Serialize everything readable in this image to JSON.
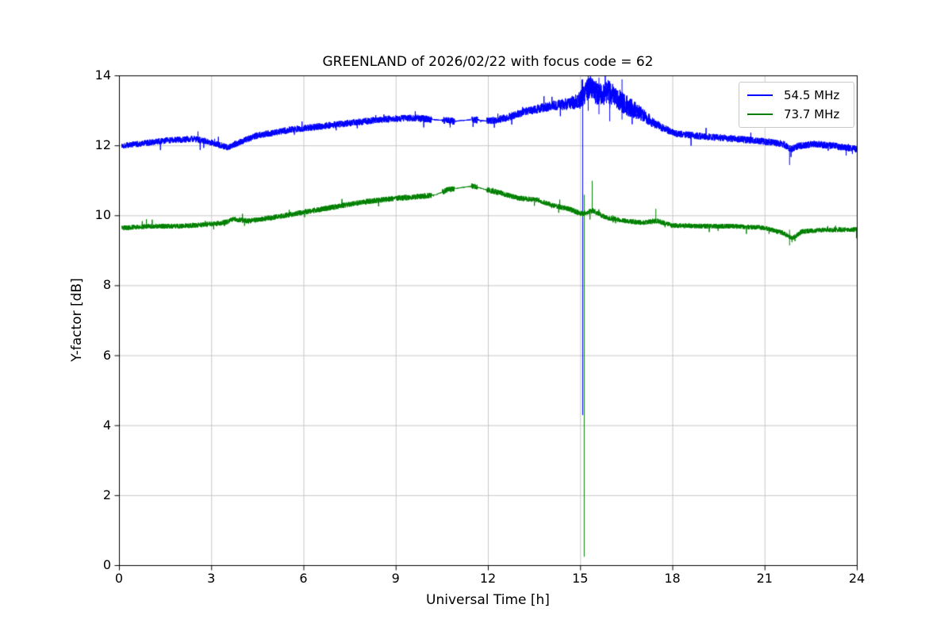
{
  "figure": {
    "background": "#ffffff"
  },
  "chart_data": {
    "type": "line",
    "title": "GREENLAND of 2026/02/22 with focus code = 62",
    "xlabel": "Universal Time [h]",
    "ylabel": "Y-factor [dB]",
    "xlim": [
      0,
      24
    ],
    "ylim": [
      0,
      14
    ],
    "xticks": [
      0,
      3,
      6,
      9,
      12,
      15,
      18,
      21,
      24
    ],
    "yticks": [
      0,
      2,
      4,
      6,
      8,
      10,
      12,
      14
    ],
    "grid": true,
    "grid_color": "#c8c8c8",
    "axis_color": "#000000",
    "legend_position": "upper right",
    "gaps": [
      [
        10.15,
        10.5
      ],
      [
        10.9,
        11.45
      ],
      [
        11.65,
        11.95
      ]
    ],
    "series": [
      {
        "name": "54.5 MHz",
        "color": "#0000ff",
        "seed": 1337,
        "x_range": [
          0.08,
          24.0
        ],
        "trend": [
          [
            0.08,
            12.0
          ],
          [
            0.6,
            12.05
          ],
          [
            1.5,
            12.15
          ],
          [
            2.4,
            12.2
          ],
          [
            3.0,
            12.1
          ],
          [
            3.5,
            11.95
          ],
          [
            3.9,
            12.1
          ],
          [
            4.5,
            12.3
          ],
          [
            5.5,
            12.45
          ],
          [
            6.5,
            12.55
          ],
          [
            7.5,
            12.65
          ],
          [
            8.5,
            12.75
          ],
          [
            9.5,
            12.8
          ],
          [
            10.2,
            12.75
          ],
          [
            10.9,
            12.7
          ],
          [
            11.5,
            12.75
          ],
          [
            12.0,
            12.7
          ],
          [
            12.6,
            12.8
          ],
          [
            13.1,
            12.95
          ],
          [
            13.6,
            13.05
          ],
          [
            14.1,
            13.15
          ],
          [
            14.6,
            13.2
          ],
          [
            15.0,
            13.3
          ],
          [
            15.3,
            13.7
          ],
          [
            15.6,
            13.45
          ],
          [
            15.9,
            13.55
          ],
          [
            16.2,
            13.35
          ],
          [
            16.5,
            13.15
          ],
          [
            16.9,
            12.95
          ],
          [
            17.3,
            12.7
          ],
          [
            17.7,
            12.5
          ],
          [
            18.1,
            12.35
          ],
          [
            18.6,
            12.3
          ],
          [
            19.2,
            12.25
          ],
          [
            20.0,
            12.2
          ],
          [
            20.6,
            12.15
          ],
          [
            21.2,
            12.1
          ],
          [
            21.6,
            12.05
          ],
          [
            21.85,
            11.9
          ],
          [
            22.1,
            12.0
          ],
          [
            22.6,
            12.05
          ],
          [
            23.2,
            12.0
          ],
          [
            23.6,
            11.95
          ],
          [
            24.0,
            11.9
          ]
        ],
        "noise": [
          [
            0,
            0.09
          ],
          [
            9.5,
            0.1
          ],
          [
            12,
            0.1
          ],
          [
            13.5,
            0.12
          ],
          [
            14.3,
            0.15
          ],
          [
            14.8,
            0.2
          ],
          [
            15.1,
            0.3
          ],
          [
            15.5,
            0.35
          ],
          [
            16.5,
            0.3
          ],
          [
            17.0,
            0.2
          ],
          [
            17.5,
            0.13
          ],
          [
            18,
            0.1
          ],
          [
            21,
            0.1
          ],
          [
            24,
            0.1
          ]
        ],
        "spikes": [
          {
            "x": 15.07,
            "y_from": 4.3,
            "y_to": 13.9
          },
          {
            "x": 15.25,
            "y_from": 13.0,
            "y_to": 14.0
          },
          {
            "x": 15.6,
            "y_from": 12.9,
            "y_to": 13.95
          },
          {
            "x": 15.95,
            "y_from": 12.7,
            "y_to": 13.85
          },
          {
            "x": 16.35,
            "y_from": 12.75,
            "y_to": 13.9
          },
          {
            "x": 21.8,
            "y_from": 11.45,
            "y_to": 12.0
          }
        ]
      },
      {
        "name": "73.7 MHz",
        "color": "#008000",
        "seed": 4242,
        "x_range": [
          0.08,
          24.0
        ],
        "trend": [
          [
            0.08,
            9.65
          ],
          [
            1.0,
            9.7
          ],
          [
            2.0,
            9.7
          ],
          [
            2.8,
            9.75
          ],
          [
            3.4,
            9.8
          ],
          [
            3.75,
            9.9
          ],
          [
            4.2,
            9.85
          ],
          [
            5.0,
            9.95
          ],
          [
            6.0,
            10.1
          ],
          [
            7.0,
            10.25
          ],
          [
            8.0,
            10.4
          ],
          [
            9.0,
            10.5
          ],
          [
            9.8,
            10.55
          ],
          [
            10.3,
            10.6
          ],
          [
            10.7,
            10.75
          ],
          [
            11.1,
            10.8
          ],
          [
            11.5,
            10.85
          ],
          [
            11.9,
            10.75
          ],
          [
            12.4,
            10.65
          ],
          [
            13.0,
            10.5
          ],
          [
            13.6,
            10.45
          ],
          [
            14.1,
            10.3
          ],
          [
            14.6,
            10.2
          ],
          [
            15.05,
            10.05
          ],
          [
            15.4,
            10.15
          ],
          [
            15.8,
            9.95
          ],
          [
            16.5,
            9.85
          ],
          [
            17.0,
            9.8
          ],
          [
            17.5,
            9.85
          ],
          [
            18.0,
            9.72
          ],
          [
            19.0,
            9.7
          ],
          [
            20.0,
            9.7
          ],
          [
            21.0,
            9.65
          ],
          [
            21.6,
            9.5
          ],
          [
            21.9,
            9.35
          ],
          [
            22.2,
            9.55
          ],
          [
            23.0,
            9.6
          ],
          [
            24.0,
            9.6
          ]
        ],
        "noise": [
          [
            0,
            0.07
          ],
          [
            9,
            0.08
          ],
          [
            12,
            0.08
          ],
          [
            14,
            0.07
          ],
          [
            15,
            0.08
          ],
          [
            16,
            0.07
          ],
          [
            24,
            0.07
          ]
        ],
        "spikes": [
          {
            "x": 15.12,
            "y_from": 0.25,
            "y_to": 10.6
          },
          {
            "x": 15.38,
            "y_from": 10.15,
            "y_to": 11.0
          },
          {
            "x": 17.45,
            "y_from": 9.8,
            "y_to": 10.2
          },
          {
            "x": 21.8,
            "y_from": 9.15,
            "y_to": 9.6
          }
        ]
      }
    ]
  }
}
